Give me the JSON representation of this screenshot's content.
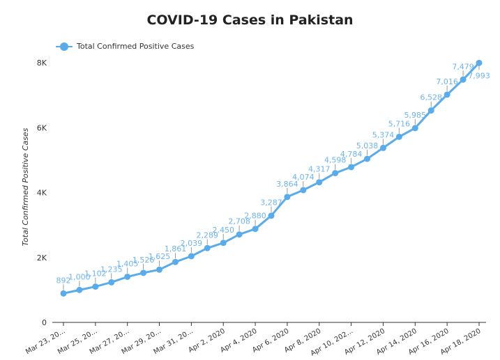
{
  "chart_data": {
    "type": "line",
    "title": "COVID-19 Cases in Pakistan",
    "xlabel": "",
    "ylabel": "Total Confirmed Positive Cases",
    "ylim": [
      0,
      8000
    ],
    "y_ticks": [
      "0",
      "2K",
      "4K",
      "6K",
      "8K"
    ],
    "y_tick_values": [
      0,
      2000,
      4000,
      6000,
      8000
    ],
    "x_tick_labels": [
      "Mar 23, 20...",
      "Mar 25, 20...",
      "Mar 27, 20...",
      "Mar 29, 20...",
      "Mar 31, 20...",
      "Apr 2, 2020",
      "Apr 4, 2020",
      "Apr 6, 2020",
      "Apr 8, 2020",
      "Apr 10, 202...",
      "Apr 12, 2020",
      "Apr 14, 2020",
      "Apr 16, 2020",
      "Apr 18, 2020"
    ],
    "x_tick_dates": [
      "2020-03-23",
      "2020-03-25",
      "2020-03-27",
      "2020-03-29",
      "2020-03-31",
      "2020-04-02",
      "2020-04-04",
      "2020-04-06",
      "2020-04-08",
      "2020-04-10",
      "2020-04-12",
      "2020-04-14",
      "2020-04-16",
      "2020-04-18"
    ],
    "x": [
      "2020-03-23",
      "2020-03-24",
      "2020-03-25",
      "2020-03-26",
      "2020-03-27",
      "2020-03-28",
      "2020-03-29",
      "2020-03-30",
      "2020-03-31",
      "2020-04-01",
      "2020-04-02",
      "2020-04-03",
      "2020-04-04",
      "2020-04-05",
      "2020-04-06",
      "2020-04-07",
      "2020-04-08",
      "2020-04-09",
      "2020-04-10",
      "2020-04-11",
      "2020-04-12",
      "2020-04-13",
      "2020-04-14",
      "2020-04-15",
      "2020-04-16",
      "2020-04-17",
      "2020-04-18"
    ],
    "series": [
      {
        "name": "Total Confirmed Positive Cases",
        "color": "#5aabea",
        "values": [
          892,
          1000,
          1102,
          1235,
          1405,
          1526,
          1625,
          1861,
          2039,
          2289,
          2450,
          2708,
          2880,
          3287,
          3864,
          4074,
          4317,
          4598,
          4784,
          5038,
          5374,
          5716,
          5985,
          6528,
          7016,
          7479,
          7993
        ],
        "labels": [
          "892",
          "1,000",
          "1,102",
          "1,235",
          "1,405",
          "1,526",
          "1,625",
          "1,861",
          "2,039",
          "2,289",
          "2,450",
          "2,708",
          "2,880",
          "3,287",
          "3,864",
          "4,074",
          "4,317",
          "4,598",
          "4,784",
          "5,038",
          "5,374",
          "5,716",
          "5,985",
          "6,528",
          "7,016",
          "7,479",
          "7,993"
        ]
      }
    ],
    "legend_position": "top-left",
    "grid": false
  }
}
